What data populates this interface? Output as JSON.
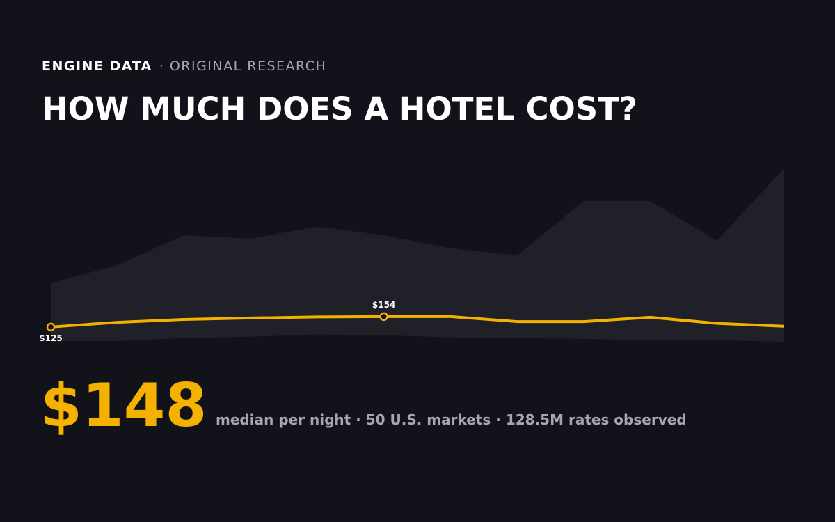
{
  "kicker": "ENGINE DATA",
  "kicker_sub": "· ORIGINAL RESEARCH",
  "title": "HOW MUCH DOES A HOTEL COST?",
  "chart_data": {
    "type": "line",
    "values": [
      125,
      138,
      146,
      150,
      153,
      154,
      154,
      140,
      140,
      152,
      135,
      127
    ],
    "value_labels": [
      "$125",
      null,
      null,
      null,
      null,
      "$154",
      null,
      null,
      null,
      null,
      null,
      null
    ],
    "band_high": [
      247,
      297,
      380,
      371,
      404,
      380,
      344,
      324,
      475,
      475,
      365,
      564
    ],
    "band_low": [
      86,
      86,
      94,
      98,
      104,
      102,
      96,
      94,
      92,
      88,
      88,
      84
    ],
    "color": "#f5b100",
    "band_color": "#1f2028"
  },
  "headline": "$148",
  "headline_note": "median per night · 50 U.S. markets · 128.5M rates observed"
}
